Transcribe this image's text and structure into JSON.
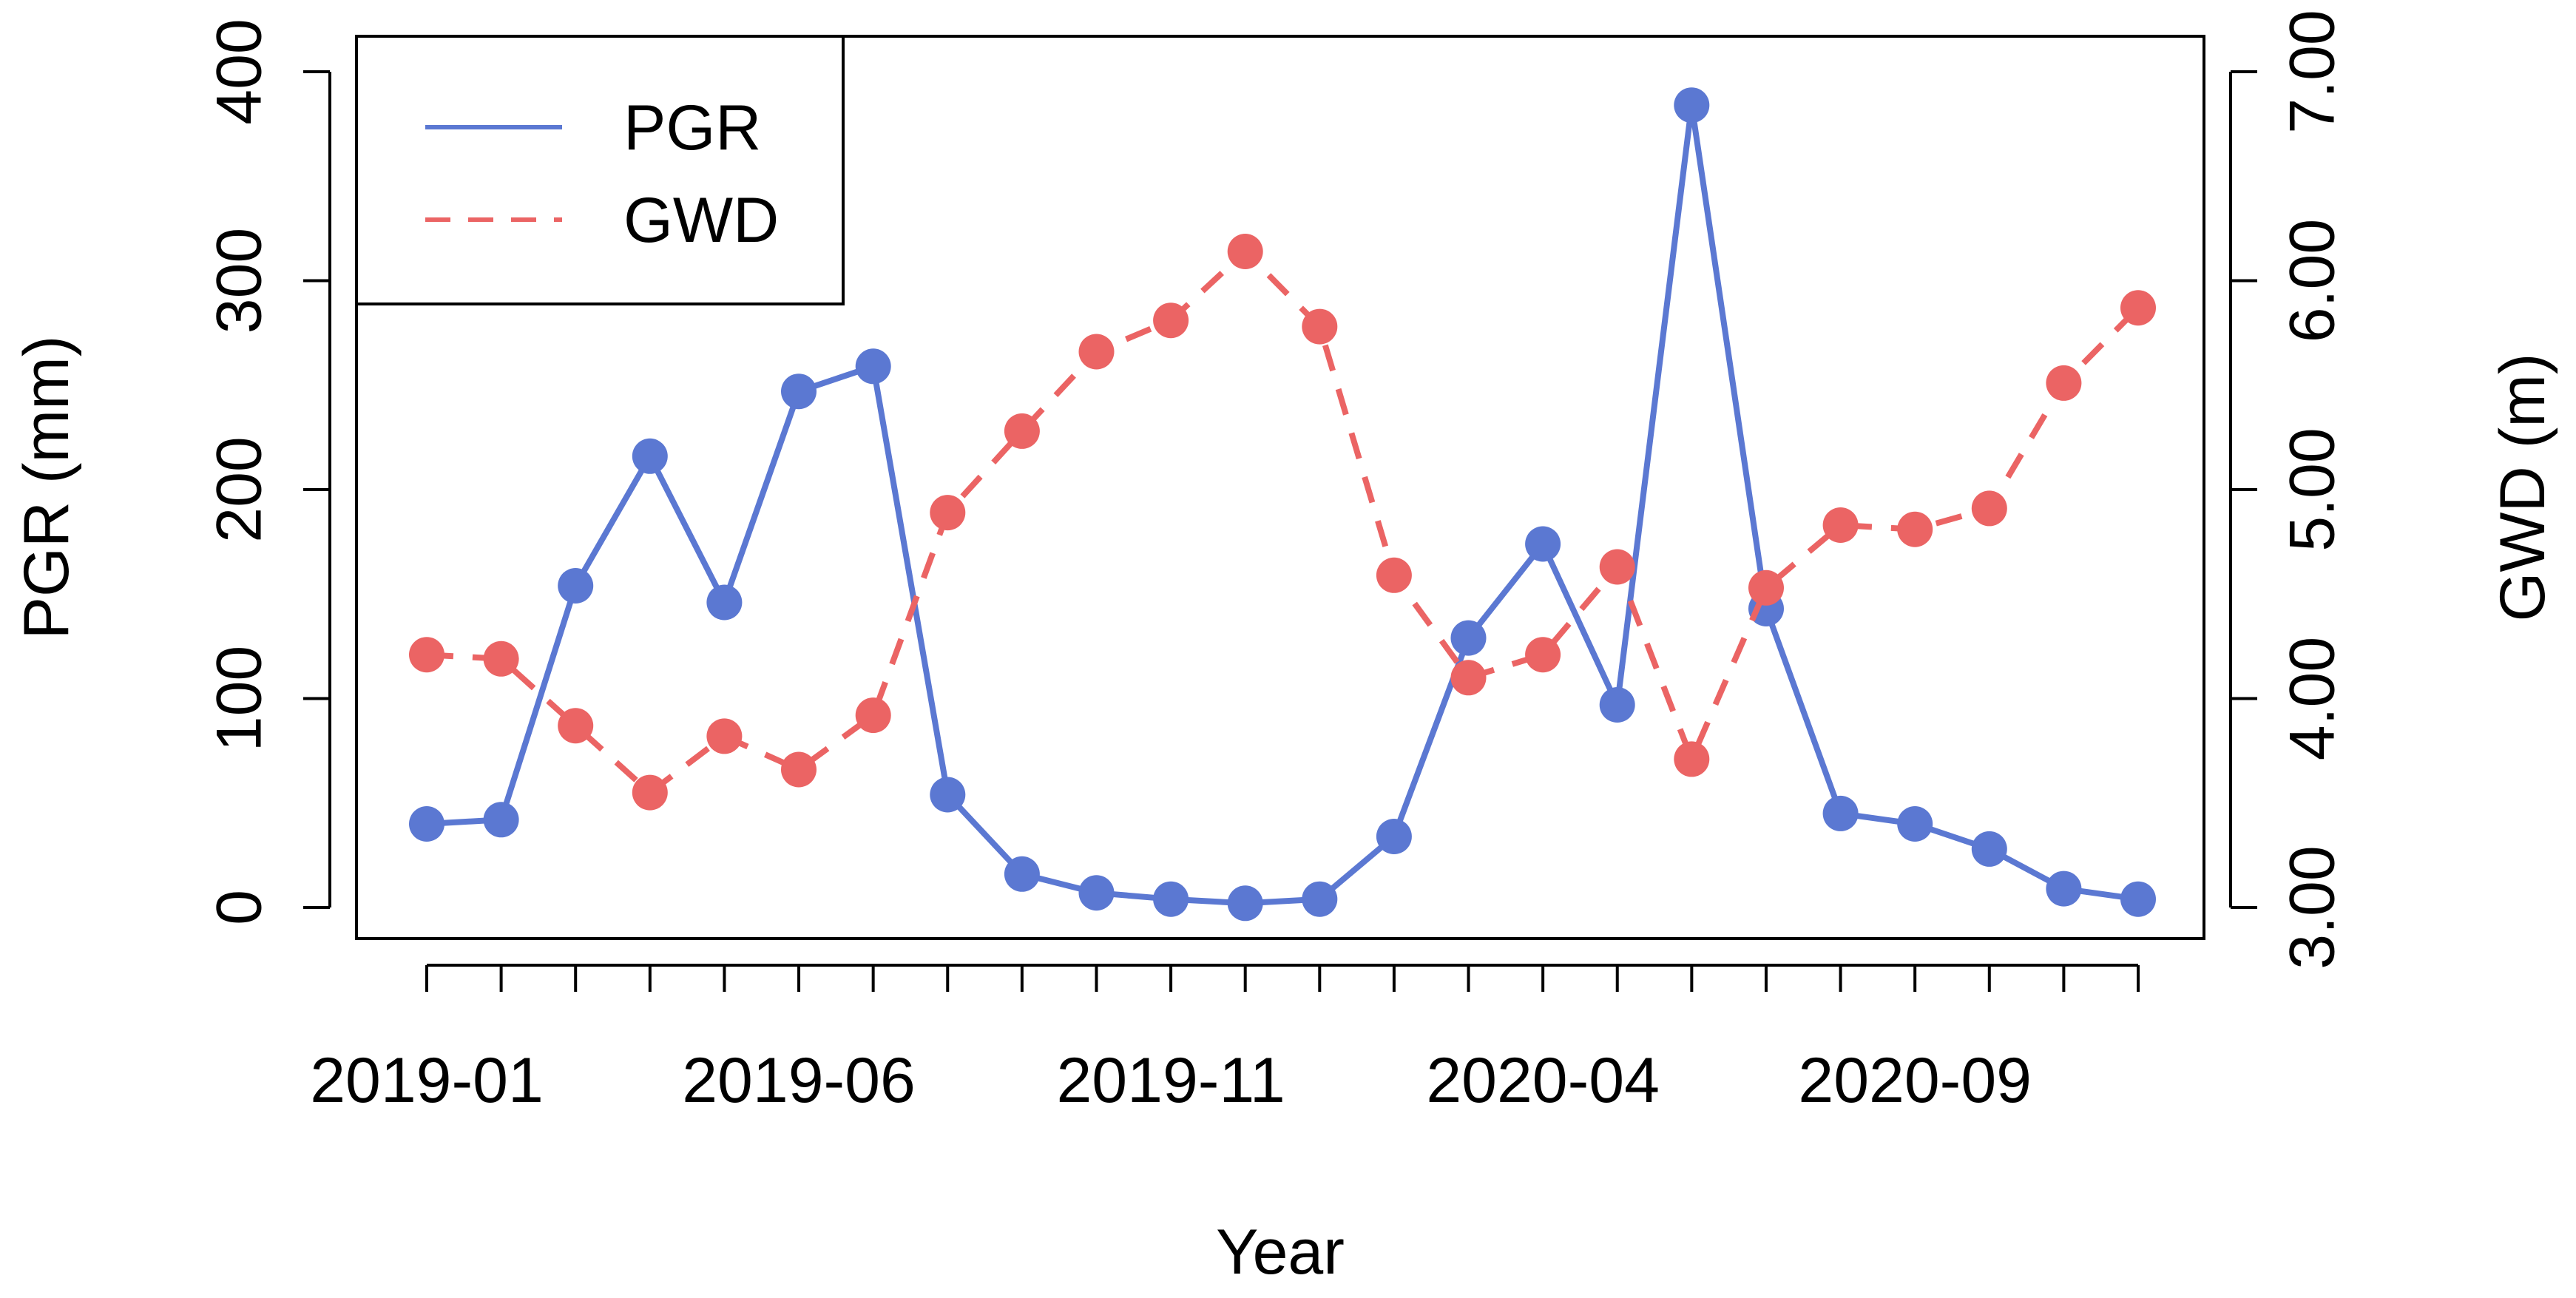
{
  "chart_data": {
    "type": "line",
    "title": "",
    "xlabel": "Year",
    "ylabel": "PGR (mm)",
    "y2label": "GWD (m)",
    "ylim": [
      0,
      400
    ],
    "y2lim": [
      3.0,
      7.0
    ],
    "yticks": [
      "0",
      "100",
      "200",
      "300",
      "400"
    ],
    "y2ticks": [
      "3.00",
      "4.00",
      "5.00",
      "6.00",
      "7.00"
    ],
    "x_tick_labels": [
      "2019-01",
      "2019-06",
      "2019-11",
      "2020-04",
      "2020-09"
    ],
    "x_tick_label_index": [
      0,
      5,
      10,
      15,
      20
    ],
    "n_points": 24,
    "legend": {
      "position": "top-left",
      "entries": [
        {
          "name": "PGR",
          "style": "solid",
          "color": "#5B78D2"
        },
        {
          "name": "GWD",
          "style": "dashed",
          "color": "#EB6464"
        }
      ]
    },
    "series": [
      {
        "name": "PGR",
        "axis": "left",
        "color": "#5B78D2",
        "style": "solid",
        "values": [
          40,
          42,
          154,
          216,
          146,
          247,
          259,
          54,
          16,
          7,
          4,
          2,
          4,
          34,
          129,
          174,
          97,
          384,
          143,
          45,
          40,
          28,
          9,
          4
        ]
      },
      {
        "name": "GWD",
        "axis": "right",
        "color": "#EB6464",
        "style": "dashed",
        "values": [
          4.21,
          4.19,
          3.87,
          3.55,
          3.82,
          3.66,
          3.92,
          4.89,
          5.28,
          5.66,
          5.81,
          6.14,
          5.78,
          4.59,
          4.1,
          4.21,
          4.63,
          3.71,
          4.53,
          4.83,
          4.81,
          4.91,
          5.51,
          5.87
        ]
      }
    ]
  }
}
